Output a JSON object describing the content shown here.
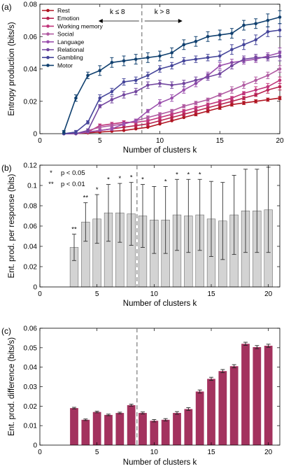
{
  "chart_data": [
    {
      "panel": "(a)",
      "type": "line",
      "xlabel": "Number of clusters k",
      "ylabel": "Entropy production (bits/s)",
      "xlim": [
        0,
        20
      ],
      "ylim": [
        0,
        0.08
      ],
      "xticks": [
        0,
        5,
        10,
        15,
        20
      ],
      "yticks": [
        0,
        0.02,
        0.04,
        0.06,
        0.08
      ],
      "ytick_labels": [
        "0",
        "0.02",
        "0.04",
        "0.06",
        "0.08"
      ],
      "x": [
        2,
        3,
        4,
        5,
        6,
        7,
        8,
        9,
        10,
        11,
        12,
        13,
        14,
        15,
        16,
        17,
        18,
        19,
        20
      ],
      "divider_x": 8.5,
      "annotations": {
        "left": "k ≤ 8",
        "right": "k > 8"
      },
      "legend_position": "top-left",
      "series": [
        {
          "name": "Rest",
          "color": "#b01522",
          "values": [
            0,
            0,
            0.0005,
            0.001,
            0.0015,
            0.002,
            0.003,
            0.004,
            0.006,
            0.008,
            0.01,
            0.012,
            0.014,
            0.016,
            0.018,
            0.019,
            0.02,
            0.021,
            0.022
          ],
          "errors": [
            0,
            0,
            0,
            0,
            0,
            0,
            0,
            0,
            0,
            0,
            0,
            0.001,
            0.001,
            0.001,
            0.001,
            0.001,
            0.001,
            0.001,
            0.001
          ]
        },
        {
          "name": "Emotion",
          "color": "#b7224e",
          "values": [
            0,
            0,
            0.001,
            0.002,
            0.003,
            0.004,
            0.005,
            0.006,
            0.008,
            0.01,
            0.012,
            0.014,
            0.016,
            0.018,
            0.02,
            0.022,
            0.024,
            0.027,
            0.029
          ],
          "errors": [
            0,
            0,
            0,
            0,
            0,
            0,
            0.001,
            0.001,
            0.001,
            0.001,
            0.001,
            0.001,
            0.001,
            0.001,
            0.001,
            0.001,
            0.001,
            0.002,
            0.002
          ]
        },
        {
          "name": "Working memory",
          "color": "#c0347a",
          "values": [
            0,
            0,
            0.001,
            0.005,
            0.006,
            0.007,
            0.007,
            0.008,
            0.01,
            0.012,
            0.014,
            0.016,
            0.018,
            0.02,
            0.022,
            0.025,
            0.027,
            0.029,
            0.033
          ],
          "errors": [
            0,
            0,
            0,
            0.001,
            0.001,
            0.001,
            0.001,
            0.001,
            0.001,
            0.001,
            0.001,
            0.001,
            0.001,
            0.001,
            0.001,
            0.001,
            0.002,
            0.002,
            0.002
          ]
        },
        {
          "name": "Social",
          "color": "#b15ba2",
          "values": [
            0,
            0,
            0.002,
            0.004,
            0.005,
            0.006,
            0.008,
            0.01,
            0.012,
            0.014,
            0.017,
            0.019,
            0.021,
            0.024,
            0.027,
            0.03,
            0.033,
            0.036,
            0.04
          ],
          "errors": [
            0,
            0,
            0,
            0.001,
            0.001,
            0.001,
            0.001,
            0.001,
            0.001,
            0.001,
            0.001,
            0.001,
            0.001,
            0.001,
            0.002,
            0.002,
            0.002,
            0.002,
            0.002
          ]
        },
        {
          "name": "Language",
          "color": "#9b50ad",
          "values": [
            0,
            0,
            0.001,
            0.002,
            0.003,
            0.006,
            0.008,
            0.014,
            0.019,
            0.022,
            0.027,
            0.031,
            0.036,
            0.042,
            0.044,
            0.045,
            0.046,
            0.048,
            0.05
          ],
          "errors": [
            0,
            0,
            0,
            0,
            0.001,
            0.001,
            0.001,
            0.001,
            0.002,
            0.002,
            0.002,
            0.002,
            0.002,
            0.002,
            0.002,
            0.002,
            0.002,
            0.002,
            0.003
          ]
        },
        {
          "name": "Relational",
          "color": "#72469f",
          "values": [
            0,
            0,
            0.002,
            0.017,
            0.021,
            0.024,
            0.026,
            0.03,
            0.031,
            0.03,
            0.031,
            0.033,
            0.035,
            0.037,
            0.042,
            0.046,
            0.047,
            0.047,
            0.048
          ],
          "errors": [
            0,
            0,
            0.001,
            0.001,
            0.002,
            0.002,
            0.002,
            0.002,
            0.002,
            0.002,
            0.002,
            0.002,
            0.002,
            0.002,
            0.002,
            0.002,
            0.002,
            0.002,
            0.003
          ]
        },
        {
          "name": "Gambling",
          "color": "#45459a",
          "values": [
            0,
            0.001,
            0.007,
            0.022,
            0.026,
            0.032,
            0.033,
            0.036,
            0.04,
            0.042,
            0.045,
            0.046,
            0.047,
            0.048,
            0.052,
            0.055,
            0.058,
            0.063,
            0.064
          ],
          "errors": [
            0,
            0.001,
            0.001,
            0.002,
            0.002,
            0.002,
            0.002,
            0.002,
            0.002,
            0.002,
            0.002,
            0.002,
            0.002,
            0.003,
            0.003,
            0.003,
            0.003,
            0.003,
            0.004
          ]
        },
        {
          "name": "Motor",
          "color": "#10406f",
          "values": [
            0.001,
            0.022,
            0.036,
            0.039,
            0.044,
            0.045,
            0.046,
            0.047,
            0.048,
            0.05,
            0.055,
            0.057,
            0.06,
            0.061,
            0.062,
            0.067,
            0.068,
            0.07,
            0.072
          ],
          "errors": [
            0.001,
            0.002,
            0.002,
            0.003,
            0.003,
            0.003,
            0.003,
            0.003,
            0.003,
            0.003,
            0.003,
            0.003,
            0.003,
            0.003,
            0.003,
            0.003,
            0.003,
            0.004,
            0.004
          ]
        }
      ]
    },
    {
      "panel": "(b)",
      "type": "bar",
      "xlabel": "Number of clusters k",
      "ylabel": "Ent. prod. per response (bits)",
      "xlim": [
        0,
        21
      ],
      "ylim": [
        0,
        0.12
      ],
      "xticks": [
        0,
        5,
        10,
        15,
        20
      ],
      "yticks": [
        0,
        0.02,
        0.04,
        0.06,
        0.08,
        0.1,
        0.12
      ],
      "ytick_labels": [
        "0",
        "0.02",
        "0.04",
        "0.06",
        "0.08",
        "0.1",
        "0.12"
      ],
      "categories": [
        3,
        4,
        5,
        6,
        7,
        8,
        9,
        10,
        11,
        12,
        13,
        14,
        15,
        16,
        17,
        18,
        19,
        20
      ],
      "values": [
        0.039,
        0.064,
        0.067,
        0.073,
        0.073,
        0.072,
        0.07,
        0.066,
        0.066,
        0.071,
        0.07,
        0.071,
        0.067,
        0.065,
        0.071,
        0.075,
        0.075,
        0.076
      ],
      "errors": [
        0.013,
        0.019,
        0.024,
        0.028,
        0.029,
        0.031,
        0.031,
        0.033,
        0.033,
        0.035,
        0.036,
        0.035,
        0.037,
        0.038,
        0.039,
        0.041,
        0.041,
        0.042
      ],
      "significance": [
        "**",
        "**",
        "*",
        "*",
        "*",
        "*",
        "*",
        "",
        "*",
        "*",
        "*",
        "*",
        "",
        "",
        "",
        "",
        "",
        ""
      ],
      "bar_color": "#d3d3d3",
      "divider_x": 8.5,
      "legend": [
        {
          "symbol": "*",
          "text": "p < 0.05"
        },
        {
          "symbol": "**",
          "text": "p < 0.01"
        }
      ],
      "legend_position": "top-left"
    },
    {
      "panel": "(c)",
      "type": "bar",
      "xlabel": "Number of clusters k",
      "ylabel": "Ent. prod. difference (bits/s)",
      "xlim": [
        0,
        21
      ],
      "ylim": [
        0,
        0.06
      ],
      "xticks": [
        0,
        5,
        10,
        15,
        20
      ],
      "yticks": [
        0,
        0.01,
        0.02,
        0.03,
        0.04,
        0.05,
        0.06
      ],
      "ytick_labels": [
        "0",
        "0.01",
        "0.02",
        "0.03",
        "0.04",
        "0.05",
        "0.06"
      ],
      "categories": [
        3,
        4,
        5,
        6,
        7,
        8,
        9,
        10,
        11,
        12,
        13,
        14,
        15,
        16,
        17,
        18,
        19,
        20
      ],
      "values": [
        0.019,
        0.013,
        0.017,
        0.0155,
        0.0165,
        0.0205,
        0.0165,
        0.0125,
        0.013,
        0.0165,
        0.0185,
        0.0275,
        0.034,
        0.038,
        0.0405,
        0.052,
        0.0503,
        0.051
      ],
      "errors": [
        0.0004,
        0.0004,
        0.0004,
        0.0004,
        0.0004,
        0.0005,
        0.0005,
        0.0006,
        0.0006,
        0.0007,
        0.0007,
        0.0008,
        0.0008,
        0.0008,
        0.0008,
        0.0008,
        0.0008,
        0.0008
      ],
      "bar_color": "#a3325e",
      "divider_x": 8.5
    }
  ]
}
